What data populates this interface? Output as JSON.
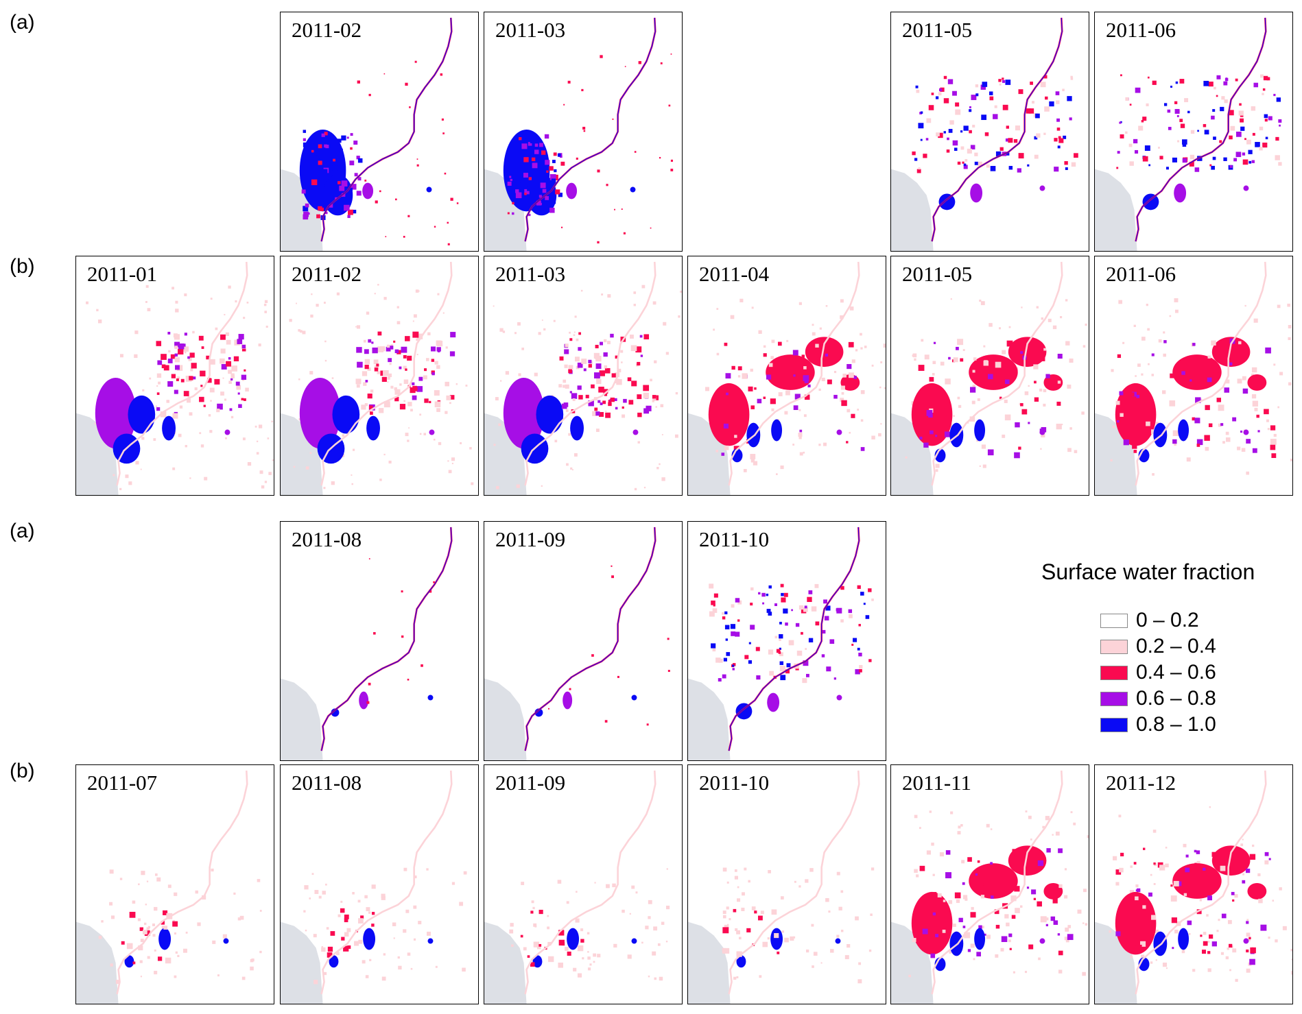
{
  "row_labels": [
    "(a)",
    "(b)",
    "(a)",
    "(b)"
  ],
  "panels": [
    {
      "id": "a1-02",
      "label": "2011-02",
      "pattern": "a_big"
    },
    {
      "id": "a1-03",
      "label": "2011-03",
      "pattern": "a_big"
    },
    {
      "id": "a1-05",
      "label": "2011-05",
      "pattern": "a_scatter"
    },
    {
      "id": "a1-06",
      "label": "2011-06",
      "pattern": "a_scatter"
    },
    {
      "id": "b1-01",
      "label": "2011-01",
      "pattern": "b_mixed"
    },
    {
      "id": "b1-02",
      "label": "2011-02",
      "pattern": "b_mixed"
    },
    {
      "id": "b1-03",
      "label": "2011-03",
      "pattern": "b_mixed"
    },
    {
      "id": "b1-04",
      "label": "2011-04",
      "pattern": "b_red"
    },
    {
      "id": "b1-05",
      "label": "2011-05",
      "pattern": "b_red"
    },
    {
      "id": "b1-06",
      "label": "2011-06",
      "pattern": "b_red"
    },
    {
      "id": "a2-08",
      "label": "2011-08",
      "pattern": "a_river"
    },
    {
      "id": "a2-09",
      "label": "2011-09",
      "pattern": "a_river"
    },
    {
      "id": "a2-10",
      "label": "2011-10",
      "pattern": "a_scatter"
    },
    {
      "id": "b2-07",
      "label": "2011-07",
      "pattern": "b_light"
    },
    {
      "id": "b2-08",
      "label": "2011-08",
      "pattern": "b_light"
    },
    {
      "id": "b2-09",
      "label": "2011-09",
      "pattern": "b_light"
    },
    {
      "id": "b2-10",
      "label": "2011-10",
      "pattern": "b_light"
    },
    {
      "id": "b2-11",
      "label": "2011-11",
      "pattern": "b_red"
    },
    {
      "id": "b2-12",
      "label": "2011-12",
      "pattern": "b_red"
    }
  ],
  "legend": {
    "title": "Surface water fraction",
    "items": [
      {
        "label": "0 – 0.2",
        "color": "#ffffff"
      },
      {
        "label": "0.2 – 0.4",
        "color": "#fcd3d8"
      },
      {
        "label": "0.4 – 0.6",
        "color": "#fa0a50"
      },
      {
        "label": "0.6 – 0.8",
        "color": "#a60ee6"
      },
      {
        "label": "0.8 – 1.0",
        "color": "#0a0af5"
      }
    ]
  },
  "colors": {
    "sea": "#dde0e6",
    "class_0_2": "#ffffff",
    "class_2_4": "#fcd3d8",
    "class_4_6": "#fa0a50",
    "class_6_8": "#a60ee6",
    "class_8_10": "#0a0af5"
  }
}
